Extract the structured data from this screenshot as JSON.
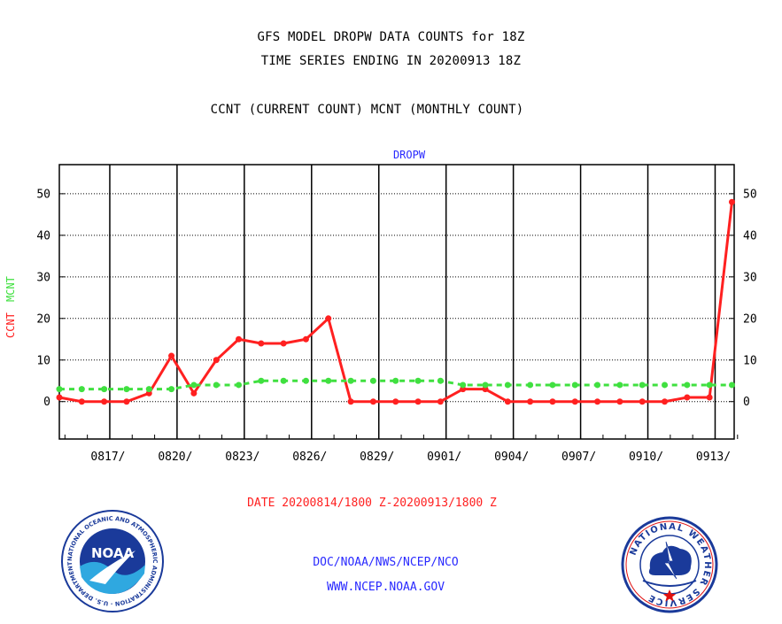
{
  "header": {
    "title_line1": "GFS MODEL DROPW DATA COUNTS for 18Z",
    "title_line2": "TIME SERIES ENDING IN 20200913 18Z",
    "subtitle": "CCNT (CURRENT COUNT) MCNT (MONTHLY COUNT)"
  },
  "footer": {
    "date_range": "DATE 20200814/1800 Z-20200913/1800 Z",
    "org": "DOC/NOAA/NWS/NCEP/NCO",
    "url": "WWW.NCEP.NOAA.GOV"
  },
  "logos": {
    "noaa_text": "NOAA",
    "noaa_ring": "NATIONAL OCEANIC AND ATMOSPHERIC ADMINISTRATION · U.S. DEPARTMENT OF COMMERCE ·",
    "nws_ring": "NATIONAL WEATHER SERVICE"
  },
  "colors": {
    "ccnt": "#ff2020",
    "mcnt": "#40e040",
    "axis_label_blue": "#2a2aff"
  },
  "chart_data": {
    "type": "line",
    "title": "DROPW",
    "ylabel_ccnt": "CCNT",
    "ylabel_mcnt": "MCNT",
    "ylim": [
      -9,
      57
    ],
    "yticks": [
      0,
      10,
      20,
      30,
      40,
      50
    ],
    "xlim": [
      0,
      30.1
    ],
    "x_tick_positions": [
      2.25,
      5.25,
      8.25,
      11.25,
      14.25,
      17.25,
      20.25,
      23.25,
      26.25,
      29.25
    ],
    "x_tick_labels": [
      "0817/",
      "0820/",
      "0823/",
      "0826/",
      "0829/",
      "0901/",
      "0904/",
      "0907/",
      "0910/",
      "0913/"
    ],
    "grid": true,
    "series": [
      {
        "name": "CCNT",
        "values": [
          1,
          0,
          0,
          0,
          2,
          11,
          2,
          10,
          15,
          14,
          14,
          15,
          20,
          0,
          0,
          0,
          0,
          0,
          3,
          3,
          0,
          0,
          0,
          0,
          0,
          0,
          0,
          0,
          1,
          1,
          48
        ]
      },
      {
        "name": "MCNT",
        "values": [
          3,
          3,
          3,
          3,
          3,
          3,
          4,
          4,
          4,
          5,
          5,
          5,
          5,
          5,
          5,
          5,
          5,
          5,
          4,
          4,
          4,
          4,
          4,
          4,
          4,
          4,
          4,
          4,
          4,
          4,
          4
        ]
      }
    ]
  }
}
